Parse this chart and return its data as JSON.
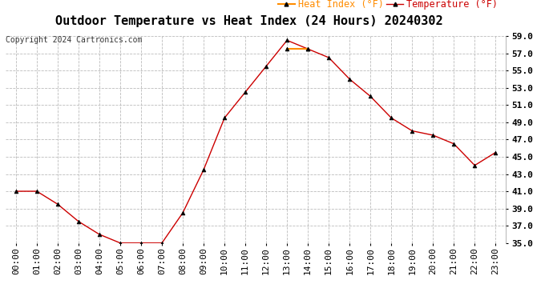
{
  "title": "Outdoor Temperature vs Heat Index (24 Hours) 20240302",
  "copyright": "Copyright 2024 Cartronics.com",
  "legend_heat_index": "Heat Index (°F)",
  "legend_temperature": "Temperature (°F)",
  "hours": [
    "00:00",
    "01:00",
    "02:00",
    "03:00",
    "04:00",
    "05:00",
    "06:00",
    "07:00",
    "08:00",
    "09:00",
    "10:00",
    "11:00",
    "12:00",
    "13:00",
    "14:00",
    "15:00",
    "16:00",
    "17:00",
    "18:00",
    "19:00",
    "20:00",
    "21:00",
    "22:00",
    "23:00"
  ],
  "temperature": [
    41.0,
    41.0,
    39.5,
    37.5,
    36.0,
    35.0,
    35.0,
    35.0,
    38.5,
    43.5,
    49.5,
    52.5,
    55.5,
    58.5,
    57.5,
    56.5,
    54.0,
    52.0,
    49.5,
    48.0,
    47.5,
    46.5,
    44.0,
    45.5
  ],
  "heat_index": [
    null,
    null,
    null,
    null,
    null,
    null,
    null,
    null,
    null,
    null,
    null,
    null,
    null,
    57.5,
    57.5,
    null,
    null,
    null,
    null,
    null,
    null,
    null,
    null,
    null
  ],
  "temp_color": "#cc0000",
  "heat_color": "#ff8c00",
  "marker": "^",
  "marker_color": "#000000",
  "ylim_min": 35.0,
  "ylim_max": 59.0,
  "yticks": [
    35.0,
    37.0,
    39.0,
    41.0,
    43.0,
    45.0,
    47.0,
    49.0,
    51.0,
    53.0,
    55.0,
    57.0,
    59.0
  ],
  "background_color": "#ffffff",
  "grid_color": "#bbbbbb",
  "title_fontsize": 11,
  "tick_fontsize": 8,
  "legend_fontsize": 8.5,
  "copyright_fontsize": 7
}
